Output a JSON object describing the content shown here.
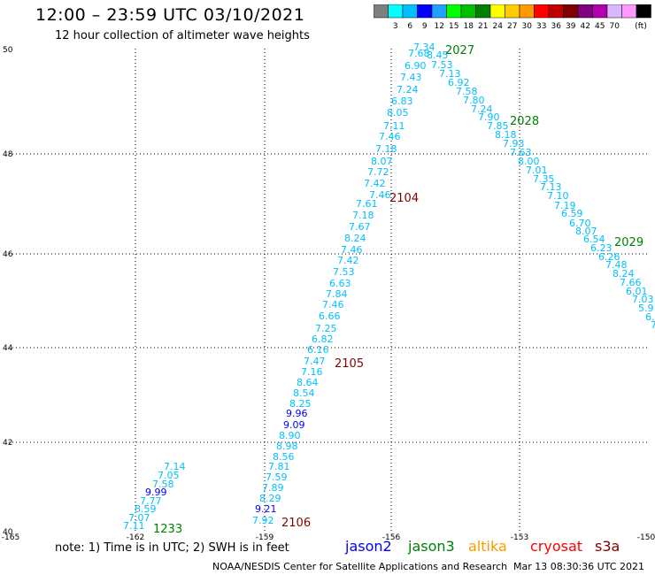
{
  "header": {
    "title": "12:00 – 23:59 UTC 03/10/2021",
    "subtitle": "12 hour collection of altimeter wave heights"
  },
  "colorbar": {
    "colors": [
      "#7f7f7f",
      "#00ffff",
      "#00bfff",
      "#0000ff",
      "#20a0ff",
      "#00ff00",
      "#00c000",
      "#008000",
      "#ffff00",
      "#ffcc00",
      "#ff9900",
      "#ff0000",
      "#c00000",
      "#800000",
      "#800080",
      "#b000b0",
      "#d8b8ff",
      "#ff99ff",
      "#000000"
    ],
    "labels": [
      "3",
      "6",
      "9",
      "12",
      "15",
      "18",
      "21",
      "24",
      "27",
      "30",
      "33",
      "36",
      "39",
      "42",
      "45",
      "70"
    ],
    "unit": "(ft)"
  },
  "map": {
    "x_ticks": [
      "-165",
      "-162",
      "-159",
      "-156",
      "-153",
      "-150"
    ],
    "y_ticks": [
      "50",
      "48",
      "46",
      "44",
      "42",
      "40"
    ],
    "track_labels": [
      {
        "text": "1233",
        "color": "#008000"
      },
      {
        "text": "2106",
        "color": "#800000"
      },
      {
        "text": "2105",
        "color": "#800000"
      },
      {
        "text": "2104",
        "color": "#800000"
      },
      {
        "text": "2027",
        "color": "#008000"
      },
      {
        "text": "2028",
        "color": "#008000"
      },
      {
        "text": "2029",
        "color": "#008000"
      }
    ],
    "values": [
      {
        "text": "7.14",
        "c": "#00bfff"
      },
      {
        "text": "7.05",
        "c": "#00bfff"
      },
      {
        "text": "7.58",
        "c": "#00bfff"
      },
      {
        "text": "9.99",
        "c": "#0000ff"
      },
      {
        "text": "7.77",
        "c": "#00bfff"
      },
      {
        "text": "8.59",
        "c": "#00bfff"
      },
      {
        "text": "7.07",
        "c": "#00bfff"
      },
      {
        "text": "7.11",
        "c": "#00bfff"
      },
      {
        "text": "7.92",
        "c": "#00bfff"
      },
      {
        "text": "9.21",
        "c": "#0000ff"
      },
      {
        "text": "8.29",
        "c": "#00bfff"
      },
      {
        "text": "7.89",
        "c": "#00bfff"
      },
      {
        "text": "7.59",
        "c": "#00bfff"
      },
      {
        "text": "7.81",
        "c": "#00bfff"
      },
      {
        "text": "8.56",
        "c": "#00bfff"
      },
      {
        "text": "8.98",
        "c": "#00bfff"
      },
      {
        "text": "8.90",
        "c": "#00bfff"
      },
      {
        "text": "9.09",
        "c": "#0000ff"
      },
      {
        "text": "9.96",
        "c": "#0000ff"
      },
      {
        "text": "8.25",
        "c": "#00bfff"
      },
      {
        "text": "8.54",
        "c": "#00bfff"
      },
      {
        "text": "8.64",
        "c": "#00bfff"
      },
      {
        "text": "7.16",
        "c": "#00bfff"
      },
      {
        "text": "7.47",
        "c": "#00bfff"
      },
      {
        "text": "6.16",
        "c": "#00bfff"
      },
      {
        "text": "6.82",
        "c": "#00bfff"
      },
      {
        "text": "7.25",
        "c": "#00bfff"
      },
      {
        "text": "6.66",
        "c": "#00bfff"
      },
      {
        "text": "7.46",
        "c": "#00bfff"
      },
      {
        "text": "7.84",
        "c": "#00bfff"
      },
      {
        "text": "6.63",
        "c": "#00bfff"
      },
      {
        "text": "7.53",
        "c": "#00bfff"
      },
      {
        "text": "7.42",
        "c": "#00bfff"
      },
      {
        "text": "7.46",
        "c": "#00bfff"
      },
      {
        "text": "8.24",
        "c": "#00bfff"
      },
      {
        "text": "7.67",
        "c": "#00bfff"
      },
      {
        "text": "7.18",
        "c": "#00bfff"
      },
      {
        "text": "7.61",
        "c": "#00bfff"
      },
      {
        "text": "7.46",
        "c": "#00bfff"
      },
      {
        "text": "7.42",
        "c": "#00bfff"
      },
      {
        "text": "7.72",
        "c": "#00bfff"
      },
      {
        "text": "8.07",
        "c": "#00bfff"
      },
      {
        "text": "7.18",
        "c": "#00bfff"
      },
      {
        "text": "7.46",
        "c": "#00bfff"
      },
      {
        "text": "7.11",
        "c": "#00bfff"
      },
      {
        "text": "8.05",
        "c": "#00bfff"
      },
      {
        "text": "6.83",
        "c": "#00bfff"
      },
      {
        "text": "7.24",
        "c": "#00bfff"
      },
      {
        "text": "7.43",
        "c": "#00bfff"
      },
      {
        "text": "6.90",
        "c": "#00bfff"
      },
      {
        "text": "7.68",
        "c": "#00bfff"
      },
      {
        "text": "7.34",
        "c": "#00bfff"
      },
      {
        "text": "8.45",
        "c": "#00bfff"
      },
      {
        "text": "7.53",
        "c": "#00bfff"
      },
      {
        "text": "7.13",
        "c": "#00bfff"
      },
      {
        "text": "6.92",
        "c": "#00bfff"
      },
      {
        "text": "7.58",
        "c": "#00bfff"
      },
      {
        "text": "7.80",
        "c": "#00bfff"
      },
      {
        "text": "7.24",
        "c": "#00bfff"
      },
      {
        "text": "7.90",
        "c": "#00bfff"
      },
      {
        "text": "7.85",
        "c": "#00bfff"
      },
      {
        "text": "8.18",
        "c": "#00bfff"
      },
      {
        "text": "7.93",
        "c": "#00bfff"
      },
      {
        "text": "7.63",
        "c": "#00bfff"
      },
      {
        "text": "8.00",
        "c": "#00bfff"
      },
      {
        "text": "7.01",
        "c": "#00bfff"
      },
      {
        "text": "7.35",
        "c": "#00bfff"
      },
      {
        "text": "7.13",
        "c": "#00bfff"
      },
      {
        "text": "7.10",
        "c": "#00bfff"
      },
      {
        "text": "7.19",
        "c": "#00bfff"
      },
      {
        "text": "6.59",
        "c": "#00bfff"
      },
      {
        "text": "6.70",
        "c": "#00bfff"
      },
      {
        "text": "8.07",
        "c": "#00bfff"
      },
      {
        "text": "6.54",
        "c": "#00bfff"
      },
      {
        "text": "6.23",
        "c": "#00bfff"
      },
      {
        "text": "6.26",
        "c": "#00bfff"
      },
      {
        "text": "7.48",
        "c": "#00bfff"
      },
      {
        "text": "8.24",
        "c": "#00bfff"
      },
      {
        "text": "7.66",
        "c": "#00bfff"
      },
      {
        "text": "6.01",
        "c": "#00bfff"
      },
      {
        "text": "7.03",
        "c": "#00bfff"
      },
      {
        "text": "5.9",
        "c": "#00bfff"
      },
      {
        "text": "6.",
        "c": "#00bfff"
      },
      {
        "text": "7",
        "c": "#00bfff"
      }
    ]
  },
  "footer": {
    "note": "note:  1) Time is in UTC;  2) SWH is in feet",
    "satellites": [
      {
        "name": "jason2",
        "color": "#0000ff"
      },
      {
        "name": "jason3",
        "color": "#008000"
      },
      {
        "name": "altika",
        "color": "#ff9900"
      },
      {
        "name": "cryosat",
        "color": "#ff0000"
      },
      {
        "name": "s3a",
        "color": "#800000"
      }
    ],
    "credit": "NOAA/NESDIS Center for Satellite Applications and Research",
    "timestamp": "Mar 13 08:30:36 UTC 2021"
  }
}
